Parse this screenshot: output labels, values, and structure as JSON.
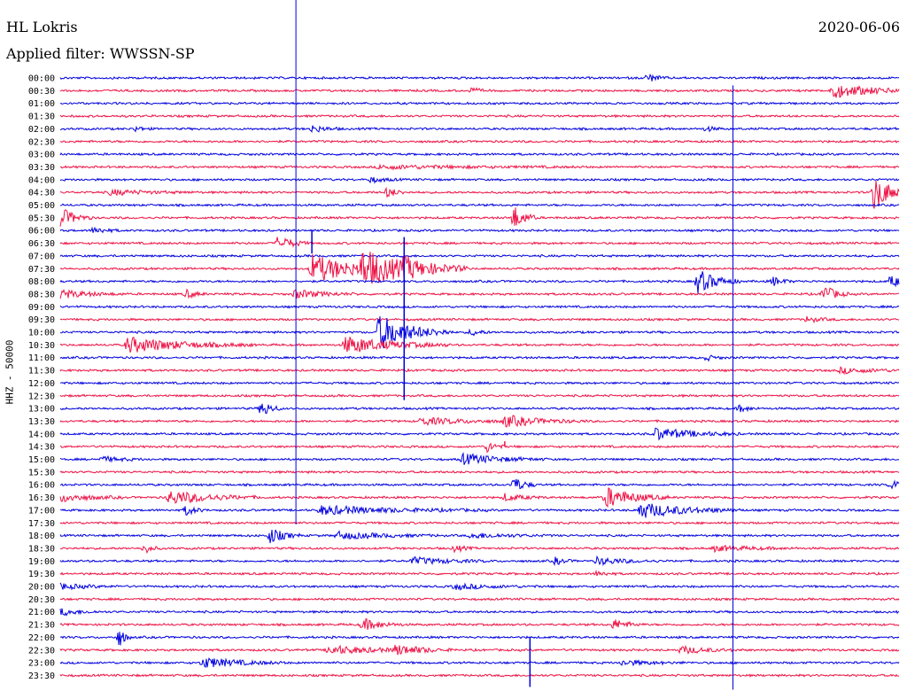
{
  "header": {
    "station": "HL Lokris",
    "filter": "Applied filter: WWSSN-SP",
    "date": "2020-06-06"
  },
  "colors": {
    "trace_even": "#0000e0",
    "trace_odd": "#ee1144",
    "marker": "#0000e0"
  },
  "chart_data": {
    "type": "line",
    "title": "HL Lokris",
    "subtitle": "Applied filter: WWSSN-SP",
    "ylabel": "HHZ - 50000",
    "row_labels": [
      "00:00",
      "00:30",
      "01:00",
      "01:30",
      "02:00",
      "02:30",
      "03:00",
      "03:30",
      "04:00",
      "04:30",
      "05:00",
      "05:30",
      "06:00",
      "06:30",
      "07:00",
      "07:30",
      "08:00",
      "08:30",
      "09:00",
      "09:30",
      "10:00",
      "10:30",
      "11:00",
      "11:30",
      "12:00",
      "12:30",
      "13:00",
      "13:30",
      "14:00",
      "14:30",
      "15:00",
      "15:30",
      "16:00",
      "16:30",
      "17:00",
      "17:30",
      "18:00",
      "18:30",
      "19:00",
      "19:30",
      "20:00",
      "20:30",
      "21:00",
      "21:30",
      "22:00",
      "22:30",
      "23:00",
      "23:30"
    ],
    "row_minutes": 30,
    "series_colors": [
      "blue",
      "red"
    ],
    "grid": false,
    "events": [
      {
        "row": 0,
        "t": 0.7,
        "amp": 5,
        "dur": 0.01
      },
      {
        "row": 1,
        "t": 0.49,
        "amp": 3,
        "dur": 0.01
      },
      {
        "row": 1,
        "t": 0.92,
        "amp": 8,
        "dur": 0.045
      },
      {
        "row": 4,
        "t": 0.09,
        "amp": 3,
        "dur": 0.008
      },
      {
        "row": 4,
        "t": 0.3,
        "amp": 4,
        "dur": 0.015
      },
      {
        "row": 4,
        "t": 0.77,
        "amp": 3,
        "dur": 0.008
      },
      {
        "row": 7,
        "t": 0.38,
        "amp": 2,
        "dur": 0.1
      },
      {
        "row": 8,
        "t": 0.37,
        "amp": 3,
        "dur": 0.015
      },
      {
        "row": 9,
        "t": 0.06,
        "amp": 3,
        "dur": 0.04
      },
      {
        "row": 9,
        "t": 0.39,
        "amp": 6,
        "dur": 0.01
      },
      {
        "row": 9,
        "t": 0.97,
        "amp": 20,
        "dur": 0.02
      },
      {
        "row": 11,
        "t": 0.0,
        "amp": 12,
        "dur": 0.015
      },
      {
        "row": 11,
        "t": 0.54,
        "amp": 14,
        "dur": 0.012
      },
      {
        "row": 12,
        "t": 0.04,
        "amp": 4,
        "dur": 0.012
      },
      {
        "row": 13,
        "t": 0.26,
        "amp": 9,
        "dur": 0.015
      },
      {
        "row": 15,
        "t": 0.3,
        "amp": 16,
        "dur": 0.05
      },
      {
        "row": 15,
        "t": 0.36,
        "amp": 18,
        "dur": 0.05
      },
      {
        "row": 15,
        "t": 0.41,
        "amp": 6,
        "dur": 0.03
      },
      {
        "row": 16,
        "t": 0.76,
        "amp": 14,
        "dur": 0.02
      },
      {
        "row": 16,
        "t": 0.85,
        "amp": 5,
        "dur": 0.01
      },
      {
        "row": 16,
        "t": 0.99,
        "amp": 6,
        "dur": 0.02
      },
      {
        "row": 17,
        "t": 0.0,
        "amp": 5,
        "dur": 0.03
      },
      {
        "row": 17,
        "t": 0.15,
        "amp": 5,
        "dur": 0.01
      },
      {
        "row": 17,
        "t": 0.28,
        "amp": 5,
        "dur": 0.03
      },
      {
        "row": 17,
        "t": 0.91,
        "amp": 11,
        "dur": 0.012
      },
      {
        "row": 19,
        "t": 0.89,
        "amp": 3,
        "dur": 0.015
      },
      {
        "row": 20,
        "t": 0.38,
        "amp": 20,
        "dur": 0.035
      },
      {
        "row": 20,
        "t": 0.49,
        "amp": 4,
        "dur": 0.01
      },
      {
        "row": 21,
        "t": 0.08,
        "amp": 9,
        "dur": 0.06
      },
      {
        "row": 21,
        "t": 0.34,
        "amp": 10,
        "dur": 0.05
      },
      {
        "row": 22,
        "t": 0.77,
        "amp": 3,
        "dur": 0.01
      },
      {
        "row": 23,
        "t": 0.93,
        "amp": 3,
        "dur": 0.04
      },
      {
        "row": 26,
        "t": 0.24,
        "amp": 10,
        "dur": 0.01
      },
      {
        "row": 26,
        "t": 0.81,
        "amp": 4,
        "dur": 0.01
      },
      {
        "row": 27,
        "t": 0.43,
        "amp": 4,
        "dur": 0.05
      },
      {
        "row": 27,
        "t": 0.53,
        "amp": 6,
        "dur": 0.04
      },
      {
        "row": 28,
        "t": 0.71,
        "amp": 7,
        "dur": 0.04
      },
      {
        "row": 29,
        "t": 0.51,
        "amp": 7,
        "dur": 0.008
      },
      {
        "row": 30,
        "t": 0.05,
        "amp": 3,
        "dur": 0.02
      },
      {
        "row": 30,
        "t": 0.48,
        "amp": 6,
        "dur": 0.04
      },
      {
        "row": 32,
        "t": 0.54,
        "amp": 9,
        "dur": 0.012
      },
      {
        "row": 32,
        "t": 0.99,
        "amp": 4,
        "dur": 0.025
      },
      {
        "row": 33,
        "t": 0.0,
        "amp": 5,
        "dur": 0.03
      },
      {
        "row": 33,
        "t": 0.13,
        "amp": 8,
        "dur": 0.045
      },
      {
        "row": 33,
        "t": 0.53,
        "amp": 4,
        "dur": 0.02
      },
      {
        "row": 33,
        "t": 0.65,
        "amp": 12,
        "dur": 0.03
      },
      {
        "row": 34,
        "t": 0.15,
        "amp": 6,
        "dur": 0.01
      },
      {
        "row": 34,
        "t": 0.31,
        "amp": 5,
        "dur": 0.08
      },
      {
        "row": 34,
        "t": 0.69,
        "amp": 9,
        "dur": 0.05
      },
      {
        "row": 36,
        "t": 0.25,
        "amp": 9,
        "dur": 0.015
      },
      {
        "row": 36,
        "t": 0.33,
        "amp": 4,
        "dur": 0.05
      },
      {
        "row": 36,
        "t": 0.49,
        "amp": 3,
        "dur": 0.04
      },
      {
        "row": 37,
        "t": 0.1,
        "amp": 6,
        "dur": 0.008
      },
      {
        "row": 37,
        "t": 0.47,
        "amp": 4,
        "dur": 0.01
      },
      {
        "row": 37,
        "t": 0.78,
        "amp": 3,
        "dur": 0.04
      },
      {
        "row": 38,
        "t": 0.42,
        "amp": 4,
        "dur": 0.04
      },
      {
        "row": 38,
        "t": 0.59,
        "amp": 4,
        "dur": 0.01
      },
      {
        "row": 38,
        "t": 0.64,
        "amp": 4,
        "dur": 0.03
      },
      {
        "row": 39,
        "t": 0.64,
        "amp": 3,
        "dur": 0.01
      },
      {
        "row": 40,
        "t": 0.0,
        "amp": 3,
        "dur": 0.03
      },
      {
        "row": 40,
        "t": 0.47,
        "amp": 3,
        "dur": 0.04
      },
      {
        "row": 42,
        "t": 0.0,
        "amp": 4,
        "dur": 0.02
      },
      {
        "row": 43,
        "t": 0.36,
        "amp": 7,
        "dur": 0.02
      },
      {
        "row": 43,
        "t": 0.66,
        "amp": 6,
        "dur": 0.015
      },
      {
        "row": 44,
        "t": 0.07,
        "amp": 12,
        "dur": 0.006
      },
      {
        "row": 45,
        "t": 0.32,
        "amp": 5,
        "dur": 0.05
      },
      {
        "row": 45,
        "t": 0.4,
        "amp": 5,
        "dur": 0.03
      },
      {
        "row": 45,
        "t": 0.74,
        "amp": 4,
        "dur": 0.03
      },
      {
        "row": 46,
        "t": 0.17,
        "amp": 6,
        "dur": 0.04
      },
      {
        "row": 46,
        "t": 0.67,
        "amp": 3,
        "dur": 0.03
      }
    ],
    "glitches": [
      {
        "row": 12,
        "t": 0.3,
        "up": 0,
        "down": 26
      },
      {
        "row": 16,
        "t": 0.41,
        "up": 50,
        "down": 134
      },
      {
        "row": 29,
        "t": 0.53,
        "up": 6,
        "down": 0
      },
      {
        "row": 44,
        "t": 0.56,
        "up": 0,
        "down": 56
      }
    ],
    "markers": [
      {
        "row_start": 0,
        "row_end": 34,
        "t": 0.281
      },
      {
        "row_start": 1,
        "row_end": 47,
        "t": 0.802
      }
    ]
  }
}
